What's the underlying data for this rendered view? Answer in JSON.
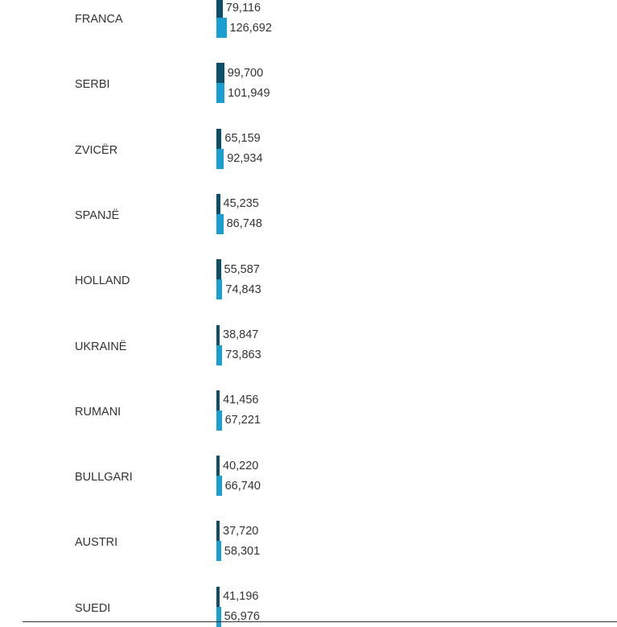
{
  "chart_data": {
    "type": "bar",
    "orientation": "horizontal",
    "categories": [
      "FRANCA",
      "SERBI",
      "ZVICËR",
      "SPANJË",
      "HOLLAND",
      "UKRAINË",
      "RUMANI",
      "BULLGARI",
      "AUSTRI",
      "SUEDI"
    ],
    "series": [
      {
        "color": "#0b4f6c",
        "values": [
          79116,
          99700,
          65159,
          45235,
          55587,
          38847,
          41456,
          40220,
          37720,
          41196
        ],
        "labels": [
          "79,116",
          "99,700",
          "65,159",
          "45,235",
          "55,587",
          "38,847",
          "41,456",
          "40,220",
          "37,720",
          "41,196"
        ]
      },
      {
        "color": "#1a9fd0",
        "values": [
          126692,
          101949,
          92934,
          86748,
          74843,
          73863,
          67221,
          66740,
          58301,
          56976
        ],
        "labels": [
          "126,692",
          "101,949",
          "92,934",
          "86,748",
          "74,843",
          "73,863",
          "67,221",
          "66,740",
          "58,301",
          "56,976"
        ]
      }
    ],
    "legend": "none",
    "grid": false
  }
}
